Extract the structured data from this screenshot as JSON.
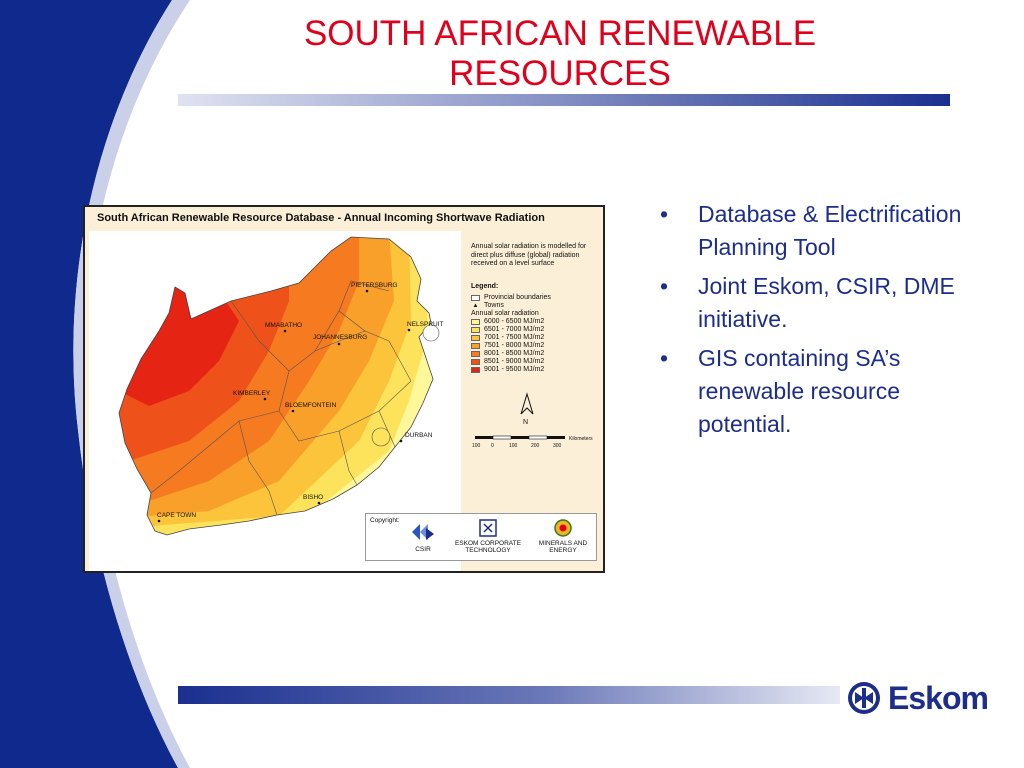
{
  "slide": {
    "title_line1": "SOUTH AFRICAN RENEWABLE",
    "title_line2": "RESOURCES",
    "bullets": [
      "Database & Electrification Planning Tool",
      "Joint Eskom, CSIR, DME initiative.",
      "GIS containing SA’s renewable resource potential."
    ]
  },
  "map": {
    "title": "South African Renewable Resource Database - Annual Incoming Shortwave Radiation",
    "note": "Annual solar radiation is modelled for direct plus diffuse (global) radiation received on a level surface",
    "legend_heading": "Legend:",
    "legend_items": [
      "Provincial boundaries",
      "Towns",
      "Annual solar radiation"
    ],
    "classes": [
      {
        "label": "6000 - 6500 MJ/m2",
        "color": "#fff89a"
      },
      {
        "label": "6501 -  7000 MJ/m2",
        "color": "#fde35c"
      },
      {
        "label": "7001 - 7500 MJ/m2",
        "color": "#fcc43a"
      },
      {
        "label": "7501 - 8000 MJ/m2",
        "color": "#f9a02a"
      },
      {
        "label": "8001 - 8500 MJ/m2",
        "color": "#f57a20"
      },
      {
        "label": "8501 - 9000 MJ/m2",
        "color": "#ee521a"
      },
      {
        "label": "9001 - 9500 MJ/m2",
        "color": "#e52414"
      }
    ],
    "towns": [
      "PIETERSBURG",
      "MMABATHO",
      "NELSPRUIT",
      "JOHANNESBURG",
      "KIMBERLEY",
      "BLOEMFONTEIN",
      "DURBAN",
      "BISHO",
      "CAPE TOWN"
    ],
    "north_label": "N",
    "scale_labels": [
      "100",
      "0",
      "100",
      "200",
      "300",
      "Kilometers"
    ],
    "copyright": "Copyright:",
    "logos": [
      {
        "line1": "CSIR",
        "line2": ""
      },
      {
        "line1": "ESKOM CORPORATE",
        "line2": "TECHNOLOGY"
      },
      {
        "line1": "MINERALS AND",
        "line2": "ENERGY"
      }
    ]
  },
  "brand": {
    "name": "Eskom",
    "color": "#1c2d8c",
    "accent": "#e0001b"
  }
}
